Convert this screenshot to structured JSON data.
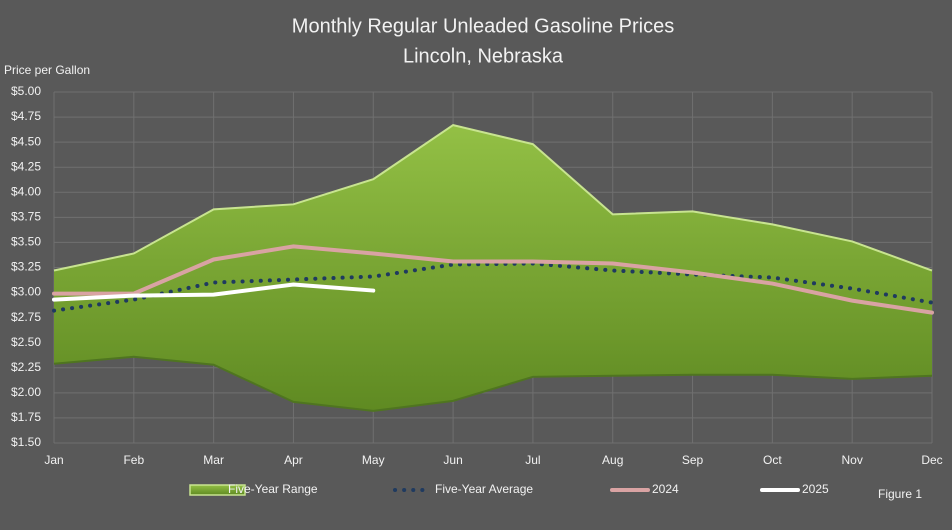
{
  "chart_data": {
    "type": "line",
    "title": "Monthly Regular Unleaded Gasoline Prices",
    "subtitle": "Lincoln, Nebraska",
    "y_label": "Price per Gallon",
    "annotation": "Figure 1",
    "categories": [
      "Jan",
      "Feb",
      "Mar",
      "Apr",
      "May",
      "Jun",
      "Jul",
      "Aug",
      "Sep",
      "Oct",
      "Nov",
      "Dec"
    ],
    "ylim": [
      1.5,
      5.0
    ],
    "yticks": [
      {
        "value": 1.5,
        "label": "$1.50"
      },
      {
        "value": 1.75,
        "label": "$1.75"
      },
      {
        "value": 2.0,
        "label": "$2.00"
      },
      {
        "value": 2.25,
        "label": "$2.25"
      },
      {
        "value": 2.5,
        "label": "$2.50"
      },
      {
        "value": 2.75,
        "label": "$2.75"
      },
      {
        "value": 3.0,
        "label": "$3.00"
      },
      {
        "value": 3.25,
        "label": "$3.25"
      },
      {
        "value": 3.5,
        "label": "$3.50"
      },
      {
        "value": 3.75,
        "label": "$3.75"
      },
      {
        "value": 4.0,
        "label": "$4.00"
      },
      {
        "value": 4.25,
        "label": "$4.25"
      },
      {
        "value": 4.5,
        "label": "$4.50"
      },
      {
        "value": 4.75,
        "label": "$4.75"
      },
      {
        "value": 5.0,
        "label": "$5.00"
      }
    ],
    "grid": true,
    "legend": "bottom",
    "series": [
      {
        "name": "Five-Year Range",
        "type": "range",
        "color": "#7ea634",
        "high": [
          3.22,
          3.39,
          3.83,
          3.88,
          4.13,
          4.67,
          4.48,
          3.78,
          3.81,
          3.68,
          3.51,
          3.22
        ],
        "low": [
          2.29,
          2.36,
          2.28,
          1.91,
          1.82,
          1.92,
          2.16,
          2.17,
          2.18,
          2.18,
          2.14,
          2.17
        ]
      },
      {
        "name": "Five-Year Average",
        "type": "dotted",
        "color": "#1f3a5f",
        "values": [
          2.82,
          2.93,
          3.1,
          3.13,
          3.16,
          3.28,
          3.29,
          3.22,
          3.18,
          3.15,
          3.04,
          2.9
        ]
      },
      {
        "name": "2024",
        "type": "line",
        "color": "#d9a3a3",
        "values": [
          2.99,
          2.99,
          3.33,
          3.46,
          3.39,
          3.31,
          3.31,
          3.29,
          3.2,
          3.09,
          2.92,
          2.8
        ]
      },
      {
        "name": "2025",
        "type": "line",
        "color": "#ffffff",
        "values": [
          2.93,
          2.97,
          2.98,
          3.08,
          3.02,
          null,
          null,
          null,
          null,
          null,
          null,
          null
        ]
      }
    ]
  }
}
